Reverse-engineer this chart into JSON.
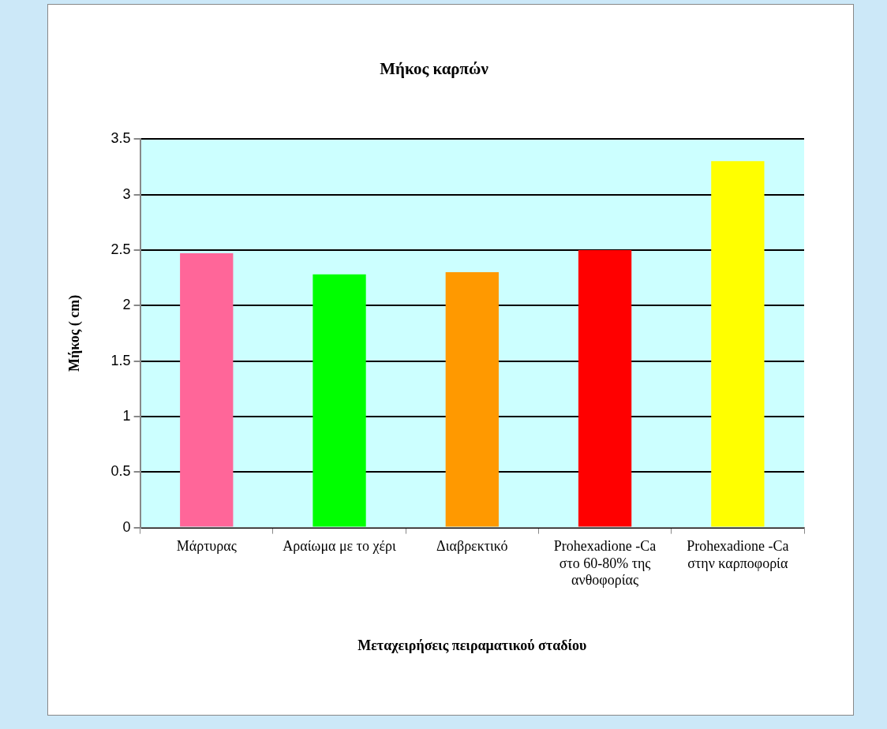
{
  "chart_data": {
    "type": "bar",
    "title": "Μήκος καρπών",
    "xlabel": "Μεταχειρήσεις πειραματικού σταδίου",
    "ylabel": "Μήκος ( cm)",
    "categories": [
      "Μάρτυρας",
      "Αραίωμα με το χέρι",
      "Διαβρεκτικό",
      "Prohexadione -Ca στο 60-80% της ανθοφορίας",
      "Prohexadione -Ca στην καρποφορία"
    ],
    "values": [
      2.47,
      2.28,
      2.3,
      2.5,
      3.3
    ],
    "colors": [
      "#ff6699",
      "#00ff00",
      "#ff9900",
      "#ff0000",
      "#ffff00"
    ],
    "ylim": [
      0,
      3.5
    ],
    "yticks": [
      0,
      0.5,
      1,
      1.5,
      2,
      2.5,
      3,
      3.5
    ],
    "grid": "y",
    "legend": false
  }
}
